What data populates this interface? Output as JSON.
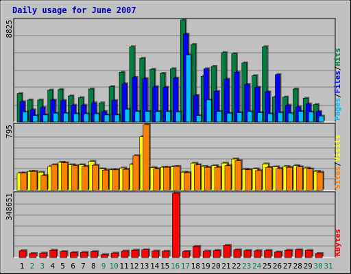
{
  "chart_data": {
    "type": "bar",
    "title": "Daily usage for June 2007",
    "x": [
      "1",
      "2",
      "3",
      "4",
      "5",
      "6",
      "7",
      "8",
      "9",
      "10",
      "11",
      "12",
      "13",
      "14",
      "15",
      "16",
      "17",
      "18",
      "19",
      "20",
      "21",
      "22",
      "23",
      "24",
      "25",
      "26",
      "27",
      "28",
      "29",
      "30",
      "31"
    ],
    "weekend_days": [
      2,
      3,
      9,
      10,
      16,
      17,
      23,
      24,
      30,
      31
    ],
    "panels": [
      {
        "name": "hits_files_pages",
        "max_label": "8825",
        "ylim": [
          0,
          8825
        ],
        "legend": [
          "Pages",
          "/",
          "Files",
          "/",
          "Hits"
        ],
        "series": [
          {
            "name": "Hits",
            "color": "#008040",
            "values": [
              2450,
              1900,
              1900,
              2750,
              2800,
              2250,
              2100,
              2850,
              1650,
              3050,
              4300,
              6500,
              5500,
              4550,
              4200,
              4600,
              8825,
              6700,
              3950,
              4800,
              6000,
              5900,
              5100,
              4000,
              6500,
              2150,
              2150,
              2850,
              2050,
              1500,
              0
            ]
          },
          {
            "name": "Files",
            "color": "#0000ff",
            "values": [
              1750,
              1050,
              1250,
              1900,
              1850,
              1450,
              1450,
              1650,
              900,
              1850,
              3300,
              3850,
              3750,
              3050,
              3000,
              3800,
              7600,
              2300,
              4600,
              2650,
              3700,
              4300,
              3250,
              3000,
              2600,
              4100,
              1450,
              1300,
              1550,
              900,
              0
            ]
          },
          {
            "name": "Pages",
            "color": "#00c0ff",
            "values": [
              850,
              550,
              600,
              750,
              750,
              700,
              700,
              700,
              600,
              600,
              1100,
              900,
              900,
              900,
              900,
              850,
              5800,
              550,
              1900,
              900,
              750,
              800,
              900,
              800,
              700,
              800,
              750,
              900,
              850,
              500,
              0
            ]
          }
        ]
      },
      {
        "name": "sites_visits",
        "max_label": "795",
        "ylim": [
          0,
          795
        ],
        "legend": [
          "Sites",
          "/",
          "Visits"
        ],
        "series": [
          {
            "name": "Visits",
            "color": "#ffff00",
            "values": [
              210,
              230,
              220,
              290,
              340,
              310,
              310,
              350,
              260,
              250,
              270,
              315,
              650,
              275,
              280,
              285,
              220,
              330,
              290,
              300,
              330,
              380,
              255,
              260,
              320,
              285,
              290,
              300,
              270,
              230,
              0
            ]
          },
          {
            "name": "Sites",
            "color": "#ff8000",
            "values": [
              210,
              230,
              180,
              310,
              335,
              300,
              290,
              305,
              245,
              250,
              255,
              420,
              795,
              260,
              280,
              290,
              215,
              310,
              280,
              280,
              300,
              360,
              250,
              240,
              280,
              265,
              280,
              285,
              260,
              220,
              0
            ]
          }
        ]
      },
      {
        "name": "kbytes",
        "max_label": "348651",
        "ylim": [
          0,
          348651
        ],
        "legend": [
          "KBytes"
        ],
        "series": [
          {
            "name": "KBytes",
            "color": "#ff0000",
            "values": [
              37000,
              22000,
              24000,
              40000,
              32000,
              27000,
              28000,
              32000,
              16000,
              24000,
              35000,
              40000,
              42000,
              35000,
              34000,
              348651,
              33000,
              60000,
              35000,
              38000,
              66000,
              42000,
              38000,
              37000,
              38000,
              30000,
              40000,
              42000,
              39000,
              22000,
              0
            ]
          }
        ]
      }
    ]
  }
}
